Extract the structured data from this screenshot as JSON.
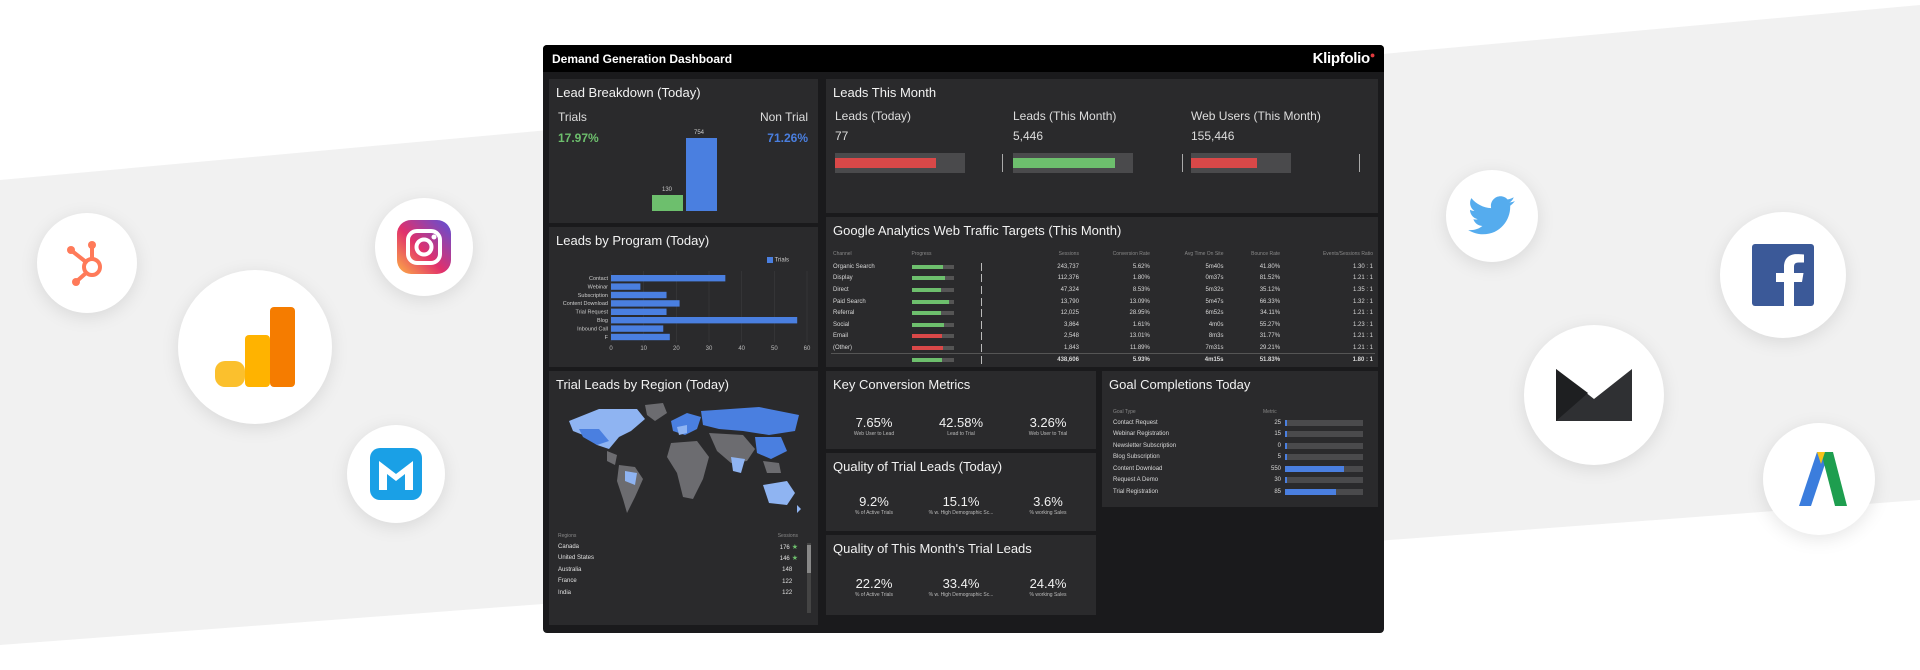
{
  "dashboard": {
    "title": "Demand Generation Dashboard",
    "brand": "Klipfolio"
  },
  "lead_breakdown": {
    "title": "Lead Breakdown (Today)",
    "trials_label": "Trials",
    "trials_pct": "17.97%",
    "nontrial_label": "Non Trial",
    "nontrial_pct": "71.26%",
    "bar_trials": "130",
    "bar_nontrial": "754"
  },
  "leads_this_month": {
    "title": "Leads This Month",
    "kpis": [
      {
        "label": "Leads (Today)",
        "value": "77",
        "fill": 0.8,
        "color": "#d94848"
      },
      {
        "label": "Leads (This Month)",
        "value": "5,446",
        "fill": 0.85,
        "color": "#6dbf6d"
      },
      {
        "label": "Web Users (This Month)",
        "value": "155,446",
        "fill": 0.7,
        "color": "#d94848"
      }
    ]
  },
  "leads_by_program": {
    "title": "Leads by Program (Today)",
    "legend": "Trials",
    "chart_data": {
      "type": "bar",
      "categories": [
        "Contact",
        "Webinar",
        "Subscription",
        "Content Download",
        "Trial Request",
        "Blog",
        "Inbound Call",
        "F"
      ],
      "series": [
        {
          "name": "Trials",
          "values": [
            35,
            9,
            17,
            21,
            17,
            57,
            16,
            18
          ]
        }
      ],
      "xticks": [
        "0",
        "10",
        "20",
        "30",
        "40",
        "50",
        "60"
      ],
      "xlim": [
        0,
        60
      ],
      "orientation": "horizontal"
    }
  },
  "ga": {
    "title": "Google Analytics Web Traffic Targets (This Month)",
    "headers": [
      "Channel",
      "Progress",
      "Sessions",
      "Conversion Rate",
      "Avg Time On Site",
      "Bounce Rate",
      "Events/Sessions Ratio"
    ],
    "rows": [
      {
        "channel": "Organic Search",
        "progress": 0.75,
        "color": "#6dbf6d",
        "sessions": "243,737",
        "conv": "5.62%",
        "time": "5m40s",
        "bounce": "41.80%",
        "ratio": "1.30 : 1"
      },
      {
        "channel": "Display",
        "progress": 0.8,
        "color": "#6dbf6d",
        "sessions": "112,376",
        "conv": "1.80%",
        "time": "0m37s",
        "bounce": "81.52%",
        "ratio": "1.21 : 1"
      },
      {
        "channel": "Direct",
        "progress": 0.7,
        "color": "#6dbf6d",
        "sessions": "47,324",
        "conv": "8.53%",
        "time": "5m32s",
        "bounce": "35.12%",
        "ratio": "1.35 : 1"
      },
      {
        "channel": "Paid Search",
        "progress": 0.9,
        "color": "#6dbf6d",
        "sessions": "13,790",
        "conv": "13.09%",
        "time": "5m47s",
        "bounce": "66.33%",
        "ratio": "1.32 : 1"
      },
      {
        "channel": "Referral",
        "progress": 0.7,
        "color": "#6dbf6d",
        "sessions": "12,025",
        "conv": "28.95%",
        "time": "6m52s",
        "bounce": "34.11%",
        "ratio": "1.21 : 1"
      },
      {
        "channel": "Social",
        "progress": 0.78,
        "color": "#6dbf6d",
        "sessions": "3,864",
        "conv": "1.61%",
        "time": "4m0s",
        "bounce": "55.27%",
        "ratio": "1.23 : 1"
      },
      {
        "channel": "Email",
        "progress": 0.72,
        "color": "#d94848",
        "sessions": "2,548",
        "conv": "13.01%",
        "time": "8m3s",
        "bounce": "31.77%",
        "ratio": "1.21 : 1"
      },
      {
        "channel": "(Other)",
        "progress": 0.75,
        "color": "#d94848",
        "sessions": "1,843",
        "conv": "11.89%",
        "time": "7m31s",
        "bounce": "29.21%",
        "ratio": "1.21 : 1"
      }
    ],
    "total": {
      "progress": 0.72,
      "color": "#6dbf6d",
      "sessions": "438,606",
      "conv": "5.93%",
      "time": "4m15s",
      "bounce": "51.83%",
      "ratio": "1.80 : 1"
    }
  },
  "key_conversion": {
    "title": "Key Conversion Metrics",
    "metrics": [
      {
        "value": "7.65%",
        "label": "Web User to Lead"
      },
      {
        "value": "42.58%",
        "label": "Lead to Trial"
      },
      {
        "value": "3.26%",
        "label": "Web User to Trial"
      }
    ]
  },
  "quality_today": {
    "title": "Quality of Trial Leads (Today)",
    "metrics": [
      {
        "value": "9.2%",
        "label": "% of Active Trials"
      },
      {
        "value": "15.1%",
        "label": "% w. High Demographic Sc..."
      },
      {
        "value": "3.6%",
        "label": "% working Sales"
      }
    ]
  },
  "quality_month": {
    "title": "Quality of This Month's Trial Leads",
    "metrics": [
      {
        "value": "22.2%",
        "label": "% of Active Trials"
      },
      {
        "value": "33.4%",
        "label": "% w. High Demographic Sc..."
      },
      {
        "value": "24.4%",
        "label": "% working Sales"
      }
    ]
  },
  "goals": {
    "title": "Goal Completions Today",
    "headers": [
      "Goal Type",
      "Metric"
    ],
    "rows": [
      {
        "name": "Contact Request",
        "metric": "25",
        "fill": 0.0
      },
      {
        "name": "Webinar Registration",
        "metric": "15",
        "fill": 0.0
      },
      {
        "name": "Newsletter Subscription",
        "metric": "0",
        "fill": 0.0
      },
      {
        "name": "Blog Subscription",
        "metric": "5",
        "fill": 0.0
      },
      {
        "name": "Content Download",
        "metric": "550",
        "fill": 0.75
      },
      {
        "name": "Request A Demo",
        "metric": "30",
        "fill": 0.0
      },
      {
        "name": "Trial Registration",
        "metric": "85",
        "fill": 0.65
      }
    ]
  },
  "regions": {
    "title": "Trial Leads by Region (Today)",
    "headers": [
      "Regions",
      "Sessions"
    ],
    "rows": [
      {
        "name": "Canada",
        "value": "176",
        "star": true
      },
      {
        "name": "United States",
        "value": "146",
        "star": true
      },
      {
        "name": "Australia",
        "value": "148",
        "star": false
      },
      {
        "name": "France",
        "value": "122",
        "star": false
      },
      {
        "name": "India",
        "value": "122",
        "star": false
      }
    ]
  },
  "icons": {
    "hubspot": "hubspot-icon",
    "instagram": "instagram-icon",
    "google_analytics": "google-analytics-icon",
    "marketo": "marketo-icon",
    "twitter": "twitter-icon",
    "facebook": "facebook-icon",
    "email": "email-icon",
    "adwords": "adwords-icon"
  }
}
